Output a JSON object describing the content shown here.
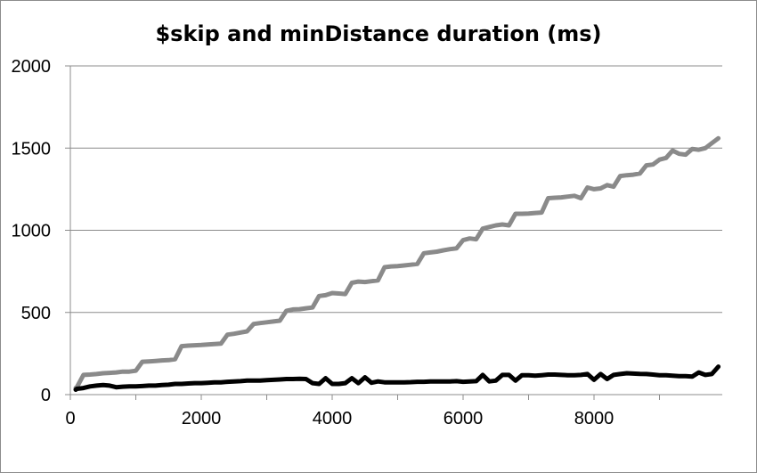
{
  "chart_data": {
    "type": "line",
    "title": "$skip and minDistance duration (ms)",
    "xlabel": "",
    "ylabel": "",
    "xlim": [
      0,
      10000
    ],
    "ylim": [
      0,
      2000
    ],
    "x_ticks": [
      "0",
      "2000",
      "4000",
      "6000",
      "8000"
    ],
    "y_ticks": [
      "0",
      "500",
      "1000",
      "1500",
      "2000"
    ],
    "grid": "horizontal",
    "legend": "none",
    "series": [
      {
        "color": "#8a8a8a",
        "x": [
          0,
          100,
          200,
          300,
          400,
          500,
          600,
          700,
          800,
          900,
          1000,
          1100,
          1200,
          1300,
          1400,
          1500,
          1600,
          1700,
          1800,
          1900,
          2000,
          2100,
          2200,
          2300,
          2400,
          2500,
          2600,
          2700,
          2800,
          2900,
          3000,
          3100,
          3200,
          3300,
          3400,
          3500,
          3600,
          3700,
          3800,
          3900,
          4000,
          4100,
          4200,
          4300,
          4400,
          4500,
          4600,
          4700,
          4800,
          4900,
          5000,
          5100,
          5200,
          5300,
          5400,
          5500,
          5600,
          5700,
          5800,
          5900,
          6000,
          6100,
          6200,
          6300,
          6400,
          6500,
          6600,
          6700,
          6800,
          6900,
          7000,
          7100,
          7200,
          7300,
          7400,
          7500,
          7600,
          7700,
          7800,
          7900,
          8000,
          8100,
          8200,
          8300,
          8400,
          8500,
          8600,
          8700,
          8800,
          8900,
          9000,
          9100,
          9200,
          9300,
          9400,
          9500,
          9600,
          9700,
          9800,
          9900
        ],
        "y": [
          40,
          45,
          120,
          122,
          125,
          130,
          132,
          135,
          140,
          140,
          145,
          200,
          202,
          205,
          208,
          210,
          215,
          295,
          298,
          300,
          302,
          305,
          308,
          310,
          365,
          370,
          378,
          385,
          430,
          435,
          440,
          445,
          450,
          510,
          518,
          520,
          525,
          530,
          600,
          605,
          618,
          615,
          612,
          680,
          688,
          685,
          690,
          695,
          775,
          780,
          782,
          786,
          790,
          795,
          860,
          865,
          870,
          878,
          885,
          890,
          940,
          950,
          945,
          1010,
          1020,
          1030,
          1035,
          1030,
          1100,
          1100,
          1102,
          1105,
          1108,
          1195,
          1198,
          1200,
          1205,
          1210,
          1195,
          1260,
          1250,
          1255,
          1275,
          1265,
          1330,
          1335,
          1338,
          1345,
          1395,
          1400,
          1430,
          1440,
          1485,
          1465,
          1460,
          1495,
          1490,
          1500,
          1530,
          1560
        ]
      },
      {
        "color": "#000000",
        "x": [
          0,
          100,
          200,
          300,
          400,
          500,
          600,
          700,
          800,
          900,
          1000,
          1100,
          1200,
          1300,
          1400,
          1500,
          1600,
          1700,
          1800,
          1900,
          2000,
          2100,
          2200,
          2300,
          2400,
          2500,
          2600,
          2700,
          2800,
          2900,
          3000,
          3100,
          3200,
          3300,
          3400,
          3500,
          3600,
          3700,
          3800,
          3900,
          4000,
          4100,
          4200,
          4300,
          4400,
          4500,
          4600,
          4700,
          4800,
          4900,
          5000,
          5100,
          5200,
          5300,
          5400,
          5500,
          5600,
          5700,
          5800,
          5900,
          6000,
          6100,
          6200,
          6300,
          6400,
          6500,
          6600,
          6700,
          6800,
          6900,
          7000,
          7100,
          7200,
          7300,
          7400,
          7500,
          7600,
          7700,
          7800,
          7900,
          8000,
          8100,
          8200,
          8300,
          8400,
          8500,
          8600,
          8700,
          8800,
          8900,
          9000,
          9100,
          9200,
          9300,
          9400,
          9500,
          9600,
          9700,
          9800,
          9900
        ],
        "y": [
          30,
          35,
          40,
          50,
          55,
          58,
          55,
          45,
          48,
          50,
          50,
          52,
          55,
          55,
          58,
          60,
          65,
          65,
          68,
          70,
          70,
          72,
          75,
          75,
          78,
          80,
          82,
          85,
          85,
          85,
          88,
          90,
          92,
          95,
          95,
          96,
          95,
          70,
          65,
          100,
          65,
          65,
          70,
          100,
          70,
          105,
          72,
          80,
          75,
          75,
          75,
          75,
          76,
          78,
          78,
          80,
          80,
          80,
          80,
          82,
          78,
          80,
          82,
          120,
          80,
          85,
          120,
          120,
          85,
          118,
          118,
          115,
          118,
          122,
          122,
          120,
          118,
          118,
          120,
          125,
          90,
          125,
          95,
          120,
          125,
          130,
          128,
          126,
          125,
          122,
          118,
          118,
          115,
          112,
          112,
          110,
          135,
          120,
          125,
          170
        ]
      }
    ]
  }
}
